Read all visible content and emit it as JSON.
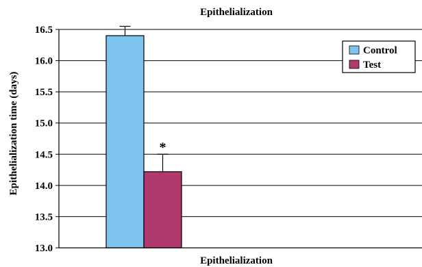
{
  "chart_data": {
    "type": "bar",
    "title": "Epithelialization",
    "xlabel": "Epithelialization",
    "ylabel": "Epithelialization  time (days)",
    "categories": [
      "Epithelialization"
    ],
    "series": [
      {
        "name": "Control",
        "values": [
          16.4
        ],
        "error": [
          0.15
        ],
        "color": "#7DC4EE"
      },
      {
        "name": "Test",
        "values": [
          14.22
        ],
        "error": [
          0.28
        ],
        "color": "#B03A6E",
        "annotation": "*"
      }
    ],
    "ylim": [
      13.0,
      16.5
    ],
    "yticks": [
      13.0,
      13.5,
      14.0,
      14.5,
      15.0,
      15.5,
      16.0,
      16.5
    ],
    "ytick_labels": [
      "13.0",
      "13.5",
      "14.0",
      "14.5",
      "15.0",
      "15.5",
      "16.0",
      "16.5"
    ],
    "grid": true,
    "legend": "top-right"
  }
}
